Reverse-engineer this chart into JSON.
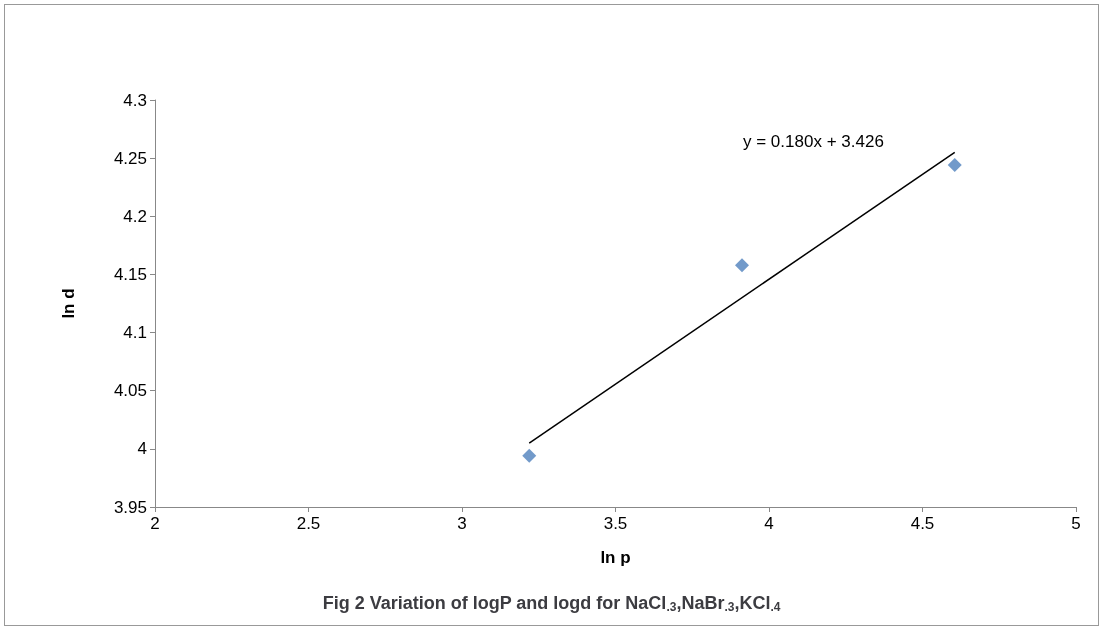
{
  "chart_data": {
    "type": "scatter",
    "title": "Fig 2 Variation of logP and logd for NaCl$_{.3}$,NaBr$_{.3}$,KCl$_{.4}$",
    "xlabel": "ln p",
    "ylabel": "ln d",
    "series": [
      {
        "color": "#4f81bd",
        "marker": "diamond",
        "x": [
          3.219,
          3.912,
          4.605
        ],
        "values": [
          3.994,
          4.158,
          4.244
        ]
      },
      {
        "type": "line",
        "color": "#000000",
        "marker": "none",
        "line_style": "solid",
        "x": [
          3.219,
          4.605
        ],
        "values": [
          4.005,
          4.255
        ]
      }
    ],
    "annotations": [
      "y = 0.180x + 3.426"
    ],
    "xlim": [
      2,
      5
    ],
    "xticks": [
      2,
      2.5,
      3,
      3.5,
      4,
      4.5,
      5
    ],
    "ylim": [
      3.95,
      4.3
    ],
    "yticks": [
      3.95,
      4,
      4.05,
      4.1,
      4.15,
      4.2,
      4.25,
      4.3
    ],
    "grid": false
  }
}
